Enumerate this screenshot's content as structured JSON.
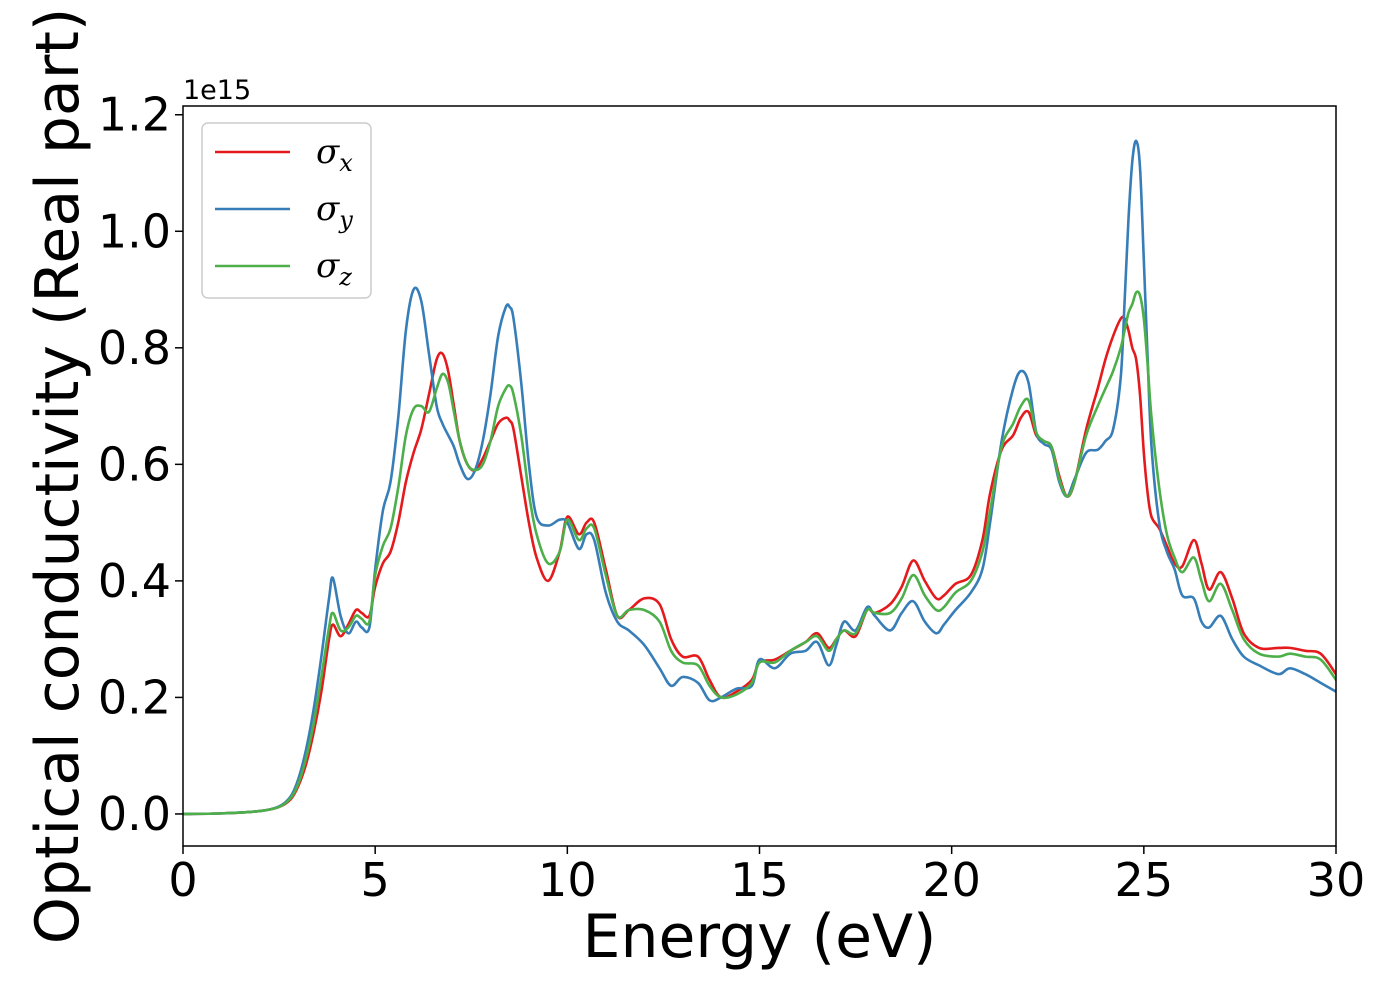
{
  "chart_data": {
    "type": "line",
    "xlabel": "Energy (eV)",
    "ylabel": "Optical conductivity (Real part)",
    "y_offset_text": "1e15",
    "y_scale_factor": 1000000000000000.0,
    "xlim": [
      0,
      30
    ],
    "ylim": [
      -0.055,
      1.215
    ],
    "xticks": [
      0,
      5,
      10,
      15,
      20,
      25,
      30
    ],
    "xtick_labels": [
      "0",
      "5",
      "10",
      "15",
      "20",
      "25",
      "30"
    ],
    "yticks": [
      0.0,
      0.2,
      0.4,
      0.6,
      0.8,
      1.0,
      1.2
    ],
    "ytick_labels": [
      "0.0",
      "0.2",
      "0.4",
      "0.6",
      "0.8",
      "1.0",
      "1.2"
    ],
    "grid": false,
    "legend_position": "top-left",
    "series": [
      {
        "name": "σx",
        "symbol": "σ",
        "subscript": "x",
        "color": "#e41a1c",
        "x": [
          0,
          1,
          2,
          2.5,
          2.8,
          3.0,
          3.2,
          3.4,
          3.6,
          3.8,
          3.9,
          4.1,
          4.3,
          4.5,
          4.65,
          4.85,
          5.0,
          5.2,
          5.4,
          5.6,
          5.8,
          6.0,
          6.2,
          6.4,
          6.6,
          6.75,
          6.9,
          7.05,
          7.2,
          7.4,
          7.6,
          7.8,
          8.0,
          8.2,
          8.4,
          8.5,
          8.6,
          8.8,
          9.0,
          9.2,
          9.5,
          9.8,
          10.0,
          10.3,
          10.5,
          10.7,
          11.0,
          11.3,
          11.6,
          12.0,
          12.4,
          12.7,
          13.0,
          13.4,
          13.7,
          14.0,
          14.4,
          14.8,
          15.0,
          15.4,
          15.8,
          16.2,
          16.5,
          16.8,
          17.0,
          17.2,
          17.5,
          17.8,
          18.0,
          18.4,
          18.7,
          19.0,
          19.3,
          19.6,
          19.8,
          20.1,
          20.5,
          20.8,
          21.0,
          21.3,
          21.6,
          21.8,
          22.0,
          22.2,
          22.4,
          22.6,
          22.8,
          23.0,
          23.2,
          23.5,
          23.8,
          24.0,
          24.2,
          24.4,
          24.5,
          24.6,
          24.7,
          24.8,
          24.9,
          25.0,
          25.1,
          25.2,
          25.4,
          25.6,
          25.8,
          26.0,
          26.3,
          26.5,
          26.7,
          27.0,
          27.3,
          27.6,
          28.0,
          28.5,
          28.8,
          29.2,
          29.6,
          30.0
        ],
        "y": [
          0,
          0.001,
          0.005,
          0.012,
          0.025,
          0.048,
          0.085,
          0.14,
          0.21,
          0.3,
          0.325,
          0.305,
          0.325,
          0.35,
          0.345,
          0.34,
          0.39,
          0.43,
          0.45,
          0.5,
          0.57,
          0.62,
          0.66,
          0.72,
          0.78,
          0.79,
          0.76,
          0.7,
          0.64,
          0.6,
          0.59,
          0.61,
          0.64,
          0.67,
          0.68,
          0.675,
          0.66,
          0.58,
          0.5,
          0.44,
          0.4,
          0.45,
          0.51,
          0.48,
          0.5,
          0.5,
          0.42,
          0.34,
          0.35,
          0.37,
          0.36,
          0.3,
          0.27,
          0.27,
          0.23,
          0.2,
          0.21,
          0.23,
          0.26,
          0.265,
          0.28,
          0.295,
          0.31,
          0.285,
          0.3,
          0.315,
          0.305,
          0.35,
          0.345,
          0.36,
          0.39,
          0.435,
          0.4,
          0.37,
          0.375,
          0.395,
          0.41,
          0.47,
          0.55,
          0.625,
          0.65,
          0.68,
          0.69,
          0.65,
          0.64,
          0.63,
          0.58,
          0.545,
          0.57,
          0.66,
          0.73,
          0.78,
          0.82,
          0.85,
          0.85,
          0.83,
          0.8,
          0.78,
          0.72,
          0.62,
          0.55,
          0.51,
          0.49,
          0.46,
          0.43,
          0.425,
          0.47,
          0.43,
          0.385,
          0.415,
          0.37,
          0.31,
          0.285,
          0.285,
          0.285,
          0.28,
          0.275,
          0.24
        ]
      },
      {
        "name": "σy",
        "symbol": "σ",
        "subscript": "y",
        "color": "#377eb8",
        "x": [
          0,
          1,
          2,
          2.5,
          2.8,
          3.0,
          3.2,
          3.4,
          3.6,
          3.8,
          3.9,
          4.1,
          4.3,
          4.5,
          4.65,
          4.85,
          5.0,
          5.2,
          5.4,
          5.6,
          5.8,
          6.0,
          6.2,
          6.4,
          6.6,
          6.75,
          6.9,
          7.05,
          7.2,
          7.4,
          7.6,
          7.8,
          8.0,
          8.2,
          8.4,
          8.5,
          8.6,
          8.8,
          9.0,
          9.2,
          9.5,
          9.8,
          10.0,
          10.3,
          10.5,
          10.7,
          11.0,
          11.3,
          11.6,
          12.0,
          12.4,
          12.7,
          13.0,
          13.4,
          13.7,
          14.0,
          14.4,
          14.8,
          15.0,
          15.4,
          15.8,
          16.2,
          16.5,
          16.8,
          17.0,
          17.2,
          17.5,
          17.8,
          18.0,
          18.4,
          18.7,
          19.0,
          19.3,
          19.6,
          19.8,
          20.1,
          20.5,
          20.8,
          21.0,
          21.3,
          21.6,
          21.8,
          22.0,
          22.2,
          22.4,
          22.6,
          22.8,
          23.0,
          23.2,
          23.5,
          23.8,
          24.0,
          24.2,
          24.4,
          24.5,
          24.6,
          24.7,
          24.8,
          24.9,
          25.0,
          25.1,
          25.2,
          25.4,
          25.6,
          25.8,
          26.0,
          26.3,
          26.5,
          26.7,
          27.0,
          27.3,
          27.6,
          28.0,
          28.5,
          28.8,
          29.2,
          29.6,
          30.0
        ],
        "y": [
          0,
          0.001,
          0.005,
          0.013,
          0.03,
          0.06,
          0.11,
          0.18,
          0.27,
          0.37,
          0.405,
          0.34,
          0.31,
          0.33,
          0.32,
          0.32,
          0.42,
          0.52,
          0.57,
          0.68,
          0.83,
          0.9,
          0.88,
          0.79,
          0.7,
          0.67,
          0.65,
          0.63,
          0.6,
          0.575,
          0.59,
          0.64,
          0.72,
          0.82,
          0.87,
          0.87,
          0.85,
          0.74,
          0.6,
          0.51,
          0.495,
          0.505,
          0.5,
          0.455,
          0.48,
          0.47,
          0.38,
          0.33,
          0.315,
          0.29,
          0.25,
          0.22,
          0.235,
          0.225,
          0.195,
          0.2,
          0.215,
          0.22,
          0.265,
          0.25,
          0.275,
          0.28,
          0.295,
          0.255,
          0.29,
          0.33,
          0.315,
          0.355,
          0.34,
          0.315,
          0.345,
          0.365,
          0.33,
          0.31,
          0.325,
          0.35,
          0.38,
          0.42,
          0.5,
          0.64,
          0.73,
          0.76,
          0.74,
          0.655,
          0.635,
          0.625,
          0.57,
          0.545,
          0.575,
          0.62,
          0.625,
          0.64,
          0.66,
          0.75,
          0.88,
          1.02,
          1.12,
          1.155,
          1.11,
          0.95,
          0.78,
          0.63,
          0.5,
          0.45,
          0.42,
          0.375,
          0.37,
          0.33,
          0.32,
          0.34,
          0.3,
          0.27,
          0.255,
          0.24,
          0.25,
          0.24,
          0.225,
          0.21
        ]
      },
      {
        "name": "σz",
        "symbol": "σ",
        "subscript": "z",
        "color": "#4daf4a",
        "x": [
          0,
          1,
          2,
          2.5,
          2.8,
          3.0,
          3.2,
          3.4,
          3.6,
          3.8,
          3.9,
          4.1,
          4.3,
          4.5,
          4.65,
          4.85,
          5.0,
          5.2,
          5.4,
          5.6,
          5.8,
          6.0,
          6.2,
          6.4,
          6.6,
          6.75,
          6.9,
          7.05,
          7.2,
          7.4,
          7.6,
          7.8,
          8.0,
          8.2,
          8.4,
          8.5,
          8.6,
          8.8,
          9.0,
          9.2,
          9.5,
          9.8,
          10.0,
          10.3,
          10.5,
          10.7,
          11.0,
          11.3,
          11.6,
          12.0,
          12.4,
          12.7,
          13.0,
          13.4,
          13.7,
          14.0,
          14.4,
          14.8,
          15.0,
          15.4,
          15.8,
          16.2,
          16.5,
          16.8,
          17.0,
          17.2,
          17.5,
          17.8,
          18.0,
          18.4,
          18.7,
          19.0,
          19.3,
          19.6,
          19.8,
          20.1,
          20.5,
          20.8,
          21.0,
          21.3,
          21.6,
          21.8,
          22.0,
          22.2,
          22.4,
          22.6,
          22.8,
          23.0,
          23.2,
          23.5,
          23.8,
          24.0,
          24.2,
          24.4,
          24.5,
          24.6,
          24.7,
          24.8,
          24.9,
          25.0,
          25.1,
          25.2,
          25.4,
          25.6,
          25.8,
          26.0,
          26.3,
          26.5,
          26.7,
          27.0,
          27.3,
          27.6,
          28.0,
          28.5,
          28.8,
          29.2,
          29.6,
          30.0
        ],
        "y": [
          0,
          0.001,
          0.005,
          0.012,
          0.027,
          0.052,
          0.095,
          0.155,
          0.235,
          0.32,
          0.345,
          0.315,
          0.32,
          0.34,
          0.335,
          0.33,
          0.41,
          0.46,
          0.49,
          0.56,
          0.65,
          0.695,
          0.7,
          0.69,
          0.73,
          0.755,
          0.74,
          0.69,
          0.64,
          0.6,
          0.59,
          0.6,
          0.64,
          0.7,
          0.73,
          0.735,
          0.72,
          0.65,
          0.55,
          0.48,
          0.43,
          0.45,
          0.505,
          0.47,
          0.49,
          0.49,
          0.41,
          0.34,
          0.35,
          0.35,
          0.33,
          0.28,
          0.26,
          0.255,
          0.22,
          0.2,
          0.205,
          0.225,
          0.26,
          0.26,
          0.28,
          0.295,
          0.305,
          0.28,
          0.3,
          0.315,
          0.31,
          0.35,
          0.345,
          0.345,
          0.37,
          0.41,
          0.375,
          0.35,
          0.355,
          0.38,
          0.4,
          0.45,
          0.52,
          0.63,
          0.67,
          0.7,
          0.71,
          0.655,
          0.64,
          0.63,
          0.575,
          0.545,
          0.57,
          0.65,
          0.7,
          0.73,
          0.76,
          0.8,
          0.83,
          0.86,
          0.875,
          0.895,
          0.89,
          0.85,
          0.77,
          0.68,
          0.56,
          0.48,
          0.44,
          0.415,
          0.44,
          0.4,
          0.365,
          0.395,
          0.35,
          0.3,
          0.275,
          0.27,
          0.275,
          0.27,
          0.265,
          0.23
        ]
      }
    ]
  }
}
